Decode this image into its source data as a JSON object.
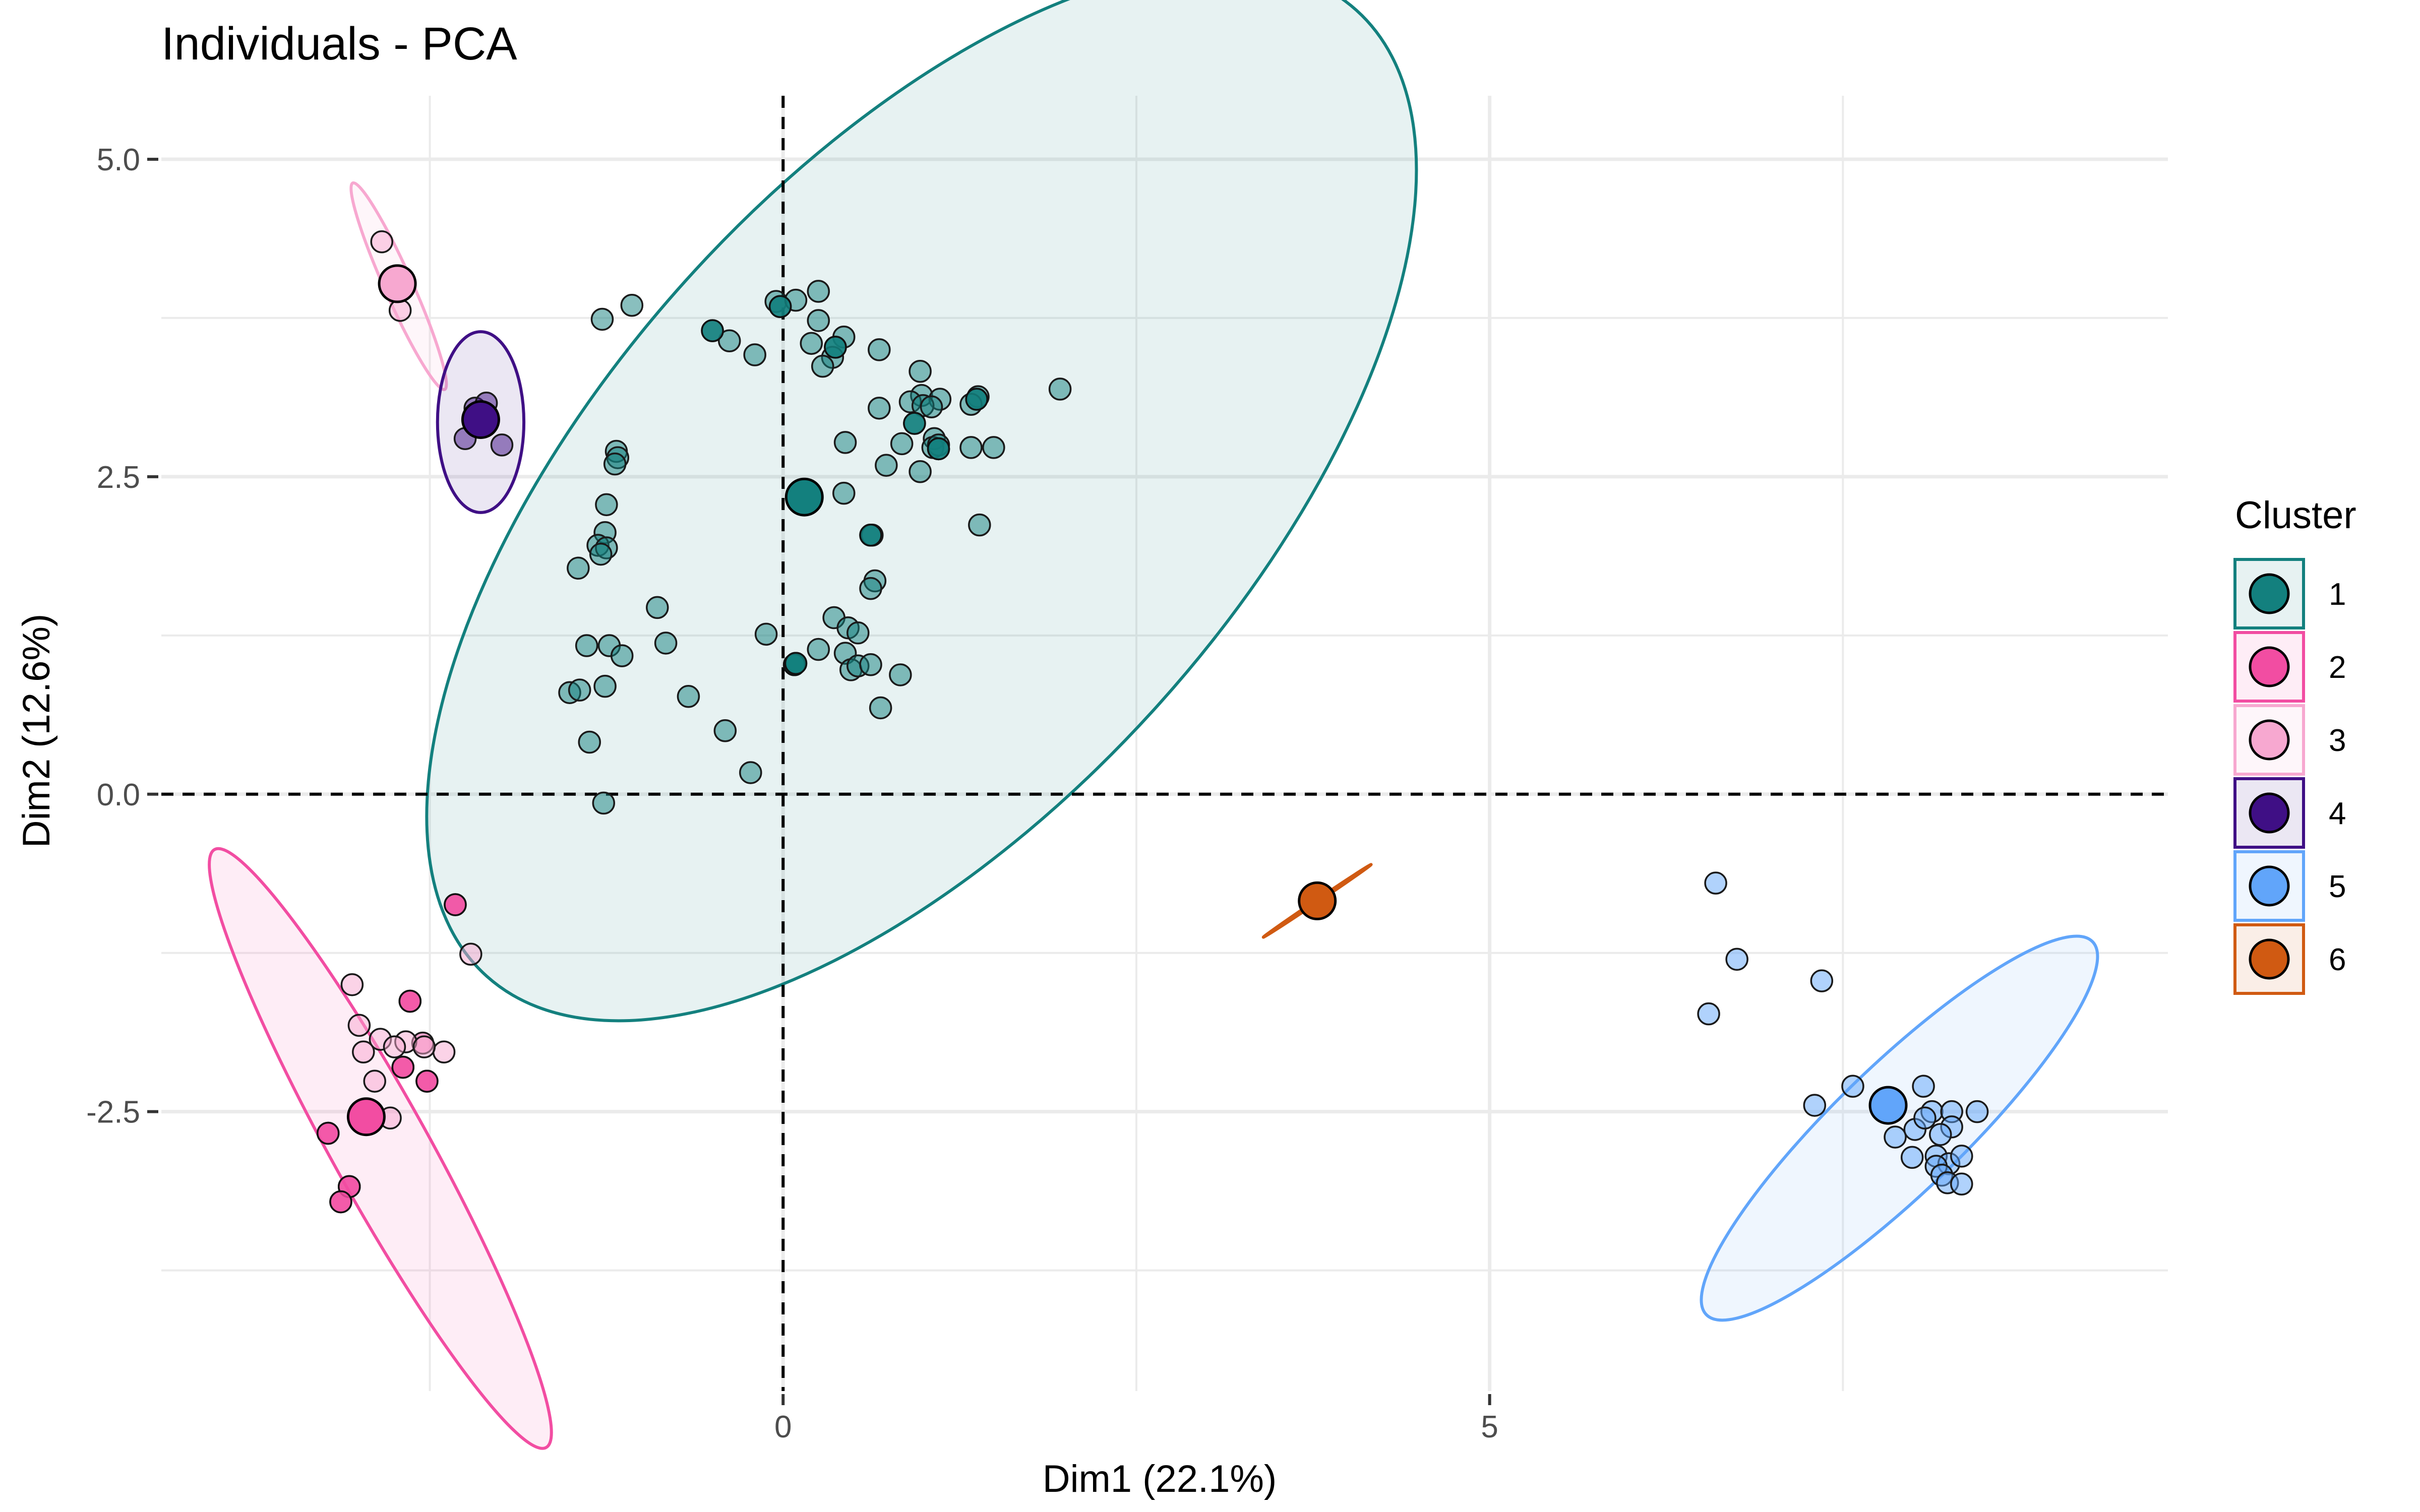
{
  "chart_data": {
    "type": "scatter",
    "title": "Individuals - PCA",
    "xlabel": "Dim1 (22.1%)",
    "ylabel": "Dim2 (12.6%)",
    "xlim": [
      -4.4,
      9.8
    ],
    "ylim": [
      -4.7,
      5.5
    ],
    "x_ticks": [
      0,
      5
    ],
    "x_tick_labels": [
      "0",
      "5"
    ],
    "y_ticks": [
      -2.5,
      0,
      2.5,
      5
    ],
    "y_tick_labels": [
      "-2.5",
      "0.0",
      "2.5",
      "5.0"
    ],
    "grid": true,
    "reference_lines": {
      "x": 0,
      "y": 0,
      "style": "dashed"
    },
    "legend": {
      "title": "Cluster",
      "position": "right"
    },
    "series": [
      {
        "name": "1",
        "color": "#13807e",
        "centroid": [
          0.15,
          2.34
        ],
        "ellipse": {
          "center": [
            0.98,
            2.37
          ],
          "rx": 4.6,
          "ry": 2.5,
          "angle_deg": 48
        },
        "points": [
          [
            -1.28,
            3.74
          ],
          [
            -1.07,
            3.85
          ],
          [
            -0.05,
            3.88
          ],
          [
            -0.02,
            3.84
          ],
          [
            0.09,
            3.89
          ],
          [
            0.25,
            3.96
          ],
          [
            -0.5,
            3.65
          ],
          [
            -0.38,
            3.57
          ],
          [
            -0.2,
            3.46
          ],
          [
            0.25,
            3.73
          ],
          [
            0.43,
            3.6
          ],
          [
            0.2,
            3.55
          ],
          [
            0.37,
            3.52
          ],
          [
            0.68,
            3.5
          ],
          [
            0.35,
            3.44
          ],
          [
            0.28,
            3.37
          ],
          [
            0.97,
            3.33
          ],
          [
            0.98,
            3.14
          ],
          [
            0.9,
            3.09
          ],
          [
            1.11,
            3.11
          ],
          [
            0.68,
            3.04
          ],
          [
            0.99,
            3.06
          ],
          [
            1.05,
            3.05
          ],
          [
            1.38,
            3.13
          ],
          [
            1.37,
            3.11
          ],
          [
            1.33,
            3.07
          ],
          [
            1.96,
            3.19
          ],
          [
            0.93,
            2.92
          ],
          [
            0.84,
            2.76
          ],
          [
            1.07,
            2.8
          ],
          [
            1.06,
            2.73
          ],
          [
            1.1,
            2.75
          ],
          [
            1.1,
            2.72
          ],
          [
            1.33,
            2.73
          ],
          [
            1.49,
            2.73
          ],
          [
            0.44,
            2.77
          ],
          [
            0.73,
            2.59
          ],
          [
            0.97,
            2.54
          ],
          [
            -1.18,
            2.7
          ],
          [
            -1.17,
            2.65
          ],
          [
            -1.19,
            2.6
          ],
          [
            0.43,
            2.37
          ],
          [
            -1.25,
            2.28
          ],
          [
            -1.26,
            2.06
          ],
          [
            -1.31,
            1.96
          ],
          [
            -1.25,
            1.94
          ],
          [
            -1.29,
            1.89
          ],
          [
            -1.45,
            1.78
          ],
          [
            0.62,
            2.04
          ],
          [
            0.63,
            2.04
          ],
          [
            1.39,
            2.12
          ],
          [
            0.65,
            1.68
          ],
          [
            0.62,
            1.62
          ],
          [
            -0.89,
            1.47
          ],
          [
            0.36,
            1.39
          ],
          [
            0.46,
            1.31
          ],
          [
            0.53,
            1.27
          ],
          [
            -0.12,
            1.26
          ],
          [
            -0.83,
            1.19
          ],
          [
            -1.39,
            1.17
          ],
          [
            -1.23,
            1.17
          ],
          [
            -1.14,
            1.09
          ],
          [
            0.44,
            1.11
          ],
          [
            0.25,
            1.14
          ],
          [
            0.08,
            1.02
          ],
          [
            0.09,
            1.03
          ],
          [
            0.48,
            0.98
          ],
          [
            0.53,
            1.01
          ],
          [
            0.62,
            1.02
          ],
          [
            0.83,
            0.94
          ],
          [
            -1.26,
            0.85
          ],
          [
            -1.51,
            0.8
          ],
          [
            -1.44,
            0.82
          ],
          [
            -0.67,
            0.77
          ],
          [
            0.69,
            0.68
          ],
          [
            -1.37,
            0.41
          ],
          [
            -0.41,
            0.5
          ],
          [
            -0.23,
            0.17
          ],
          [
            -1.27,
            -0.07
          ]
        ]
      },
      {
        "name": "2",
        "color": "#f24da2",
        "centroid": [
          -2.95,
          -2.54
        ],
        "ellipse": {
          "center": [
            -2.85,
            -2.79
          ],
          "rx": 2.42,
          "ry": 0.38,
          "angle_deg": -61
        },
        "points": [
          [
            -2.32,
            -0.87
          ],
          [
            -2.64,
            -1.63
          ],
          [
            -2.69,
            -2.15
          ],
          [
            -2.52,
            -2.26
          ],
          [
            -3.22,
            -2.67
          ],
          [
            -3.07,
            -3.09
          ],
          [
            -3.13,
            -3.21
          ],
          [
            -2.55,
            -1.96
          ]
        ]
      },
      {
        "name": "3",
        "color": "#f7a8d0",
        "centroid": [
          -2.73,
          4.02
        ],
        "ellipse": {
          "center": [
            -2.72,
            4.0
          ],
          "rx": 0.8,
          "ry": 0.11,
          "angle_deg": -66
        },
        "points": [
          [
            -2.84,
            4.35
          ],
          [
            -2.71,
            3.81
          ],
          [
            -2.21,
            -1.26
          ],
          [
            -3.05,
            -1.5
          ],
          [
            -3.0,
            -1.82
          ],
          [
            -2.85,
            -1.93
          ],
          [
            -2.67,
            -1.95
          ],
          [
            -2.75,
            -1.99
          ],
          [
            -2.97,
            -2.03
          ],
          [
            -2.4,
            -2.03
          ],
          [
            -2.54,
            -1.99
          ],
          [
            -2.89,
            -2.26
          ],
          [
            -2.78,
            -2.55
          ]
        ]
      },
      {
        "name": "4",
        "color": "#3f0f85",
        "centroid": [
          -2.14,
          2.95
        ],
        "ellipse": {
          "center": [
            -2.14,
            2.93
          ],
          "rx": 0.64,
          "ry": 0.34,
          "angle_deg": 90
        },
        "points": [
          [
            -2.18,
            3.04
          ],
          [
            -2.1,
            3.08
          ],
          [
            -2.25,
            2.8
          ],
          [
            -1.99,
            2.75
          ]
        ]
      },
      {
        "name": "5",
        "color": "#61a5fa",
        "centroid": [
          7.82,
          -2.45
        ],
        "ellipse": {
          "center": [
            7.9,
            -2.63
          ],
          "rx": 1.9,
          "ry": 0.5,
          "angle_deg": 44
        },
        "points": [
          [
            6.6,
            -0.7
          ],
          [
            6.75,
            -1.3
          ],
          [
            6.55,
            -1.73
          ],
          [
            7.35,
            -1.47
          ],
          [
            7.57,
            -2.3
          ],
          [
            7.3,
            -2.45
          ],
          [
            8.07,
            -2.3
          ],
          [
            8.13,
            -2.5
          ],
          [
            8.27,
            -2.5
          ],
          [
            8.27,
            -2.62
          ],
          [
            8.19,
            -2.68
          ],
          [
            8.01,
            -2.64
          ],
          [
            7.87,
            -2.7
          ],
          [
            8.08,
            -2.55
          ],
          [
            8.45,
            -2.5
          ],
          [
            8.16,
            -2.85
          ],
          [
            8.25,
            -2.91
          ],
          [
            8.34,
            -2.85
          ],
          [
            7.99,
            -2.86
          ],
          [
            8.16,
            -2.93
          ],
          [
            8.2,
            -3.0
          ],
          [
            8.24,
            -3.06
          ],
          [
            8.34,
            -3.07
          ]
        ]
      },
      {
        "name": "6",
        "color": "#d05a12",
        "centroid": [
          3.78,
          -0.84
        ],
        "ellipse": {
          "center": [
            3.78,
            -0.84
          ],
          "rx": 0.46,
          "ry": 0.01,
          "angle_deg": 34
        },
        "points": []
      }
    ],
    "extra_darker_points": [
      {
        "cluster": "1",
        "points": [
          [
            -0.5,
            3.65
          ],
          [
            -0.02,
            3.84
          ],
          [
            0.37,
            3.52
          ],
          [
            0.93,
            2.92
          ],
          [
            1.1,
            2.72
          ],
          [
            1.37,
            3.11
          ],
          [
            0.62,
            2.04
          ],
          [
            0.08,
            1.02
          ],
          [
            0.09,
            1.03
          ]
        ]
      },
      {
        "cluster": "2",
        "points": [
          [
            -2.32,
            -0.87
          ],
          [
            -2.64,
            -1.63
          ],
          [
            -2.69,
            -2.15
          ],
          [
            -2.52,
            -2.26
          ],
          [
            -3.22,
            -2.67
          ],
          [
            -3.07,
            -3.09
          ],
          [
            -3.13,
            -3.21
          ]
        ]
      }
    ]
  }
}
